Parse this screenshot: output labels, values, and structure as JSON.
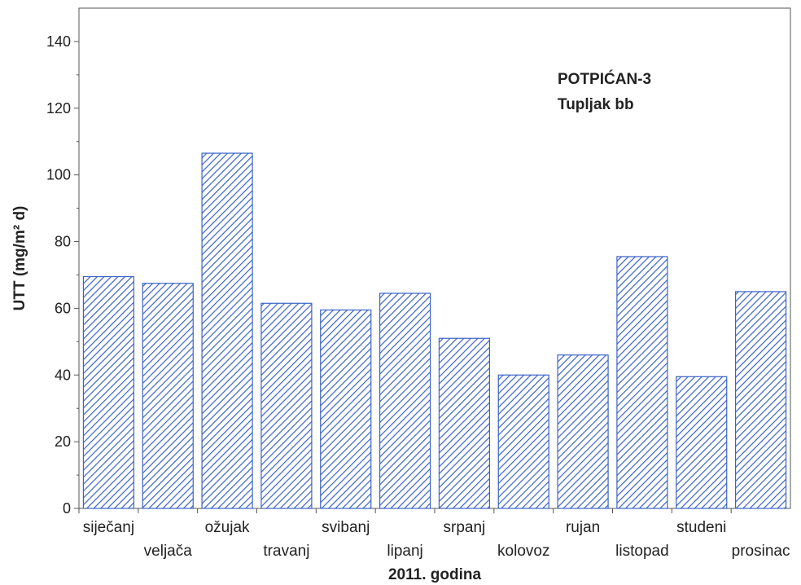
{
  "chart_data": {
    "type": "bar",
    "categories": [
      "siječanj",
      "veljača",
      "ožujak",
      "travanj",
      "svibanj",
      "lipanj",
      "srpanj",
      "kolovoz",
      "rujan",
      "listopad",
      "studeni",
      "prosinac"
    ],
    "values": [
      69.5,
      67.5,
      106.5,
      61.5,
      59.5,
      64.5,
      51.0,
      40.0,
      46.0,
      75.5,
      39.5,
      65.0
    ],
    "xlabel": "2011. godina",
    "ylabel": "UTT (mg/m² d)",
    "ylim": [
      0,
      150
    ],
    "yticks": [
      0,
      20,
      40,
      60,
      80,
      100,
      120,
      140
    ],
    "annotation": [
      "POTPIĆAN-3",
      "Tupljak bb"
    ],
    "grid": false,
    "legend": "none",
    "bar_color": "#3a63c7",
    "bar_pattern": "diagonal-hatch"
  }
}
